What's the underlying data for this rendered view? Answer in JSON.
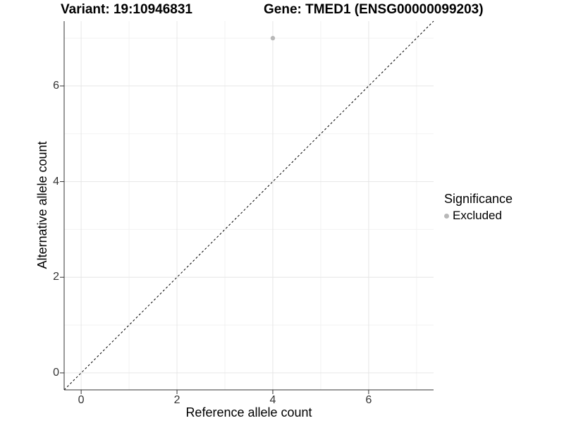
{
  "chart_data": {
    "type": "scatter",
    "titles": {
      "left": "Variant: 19:10946831",
      "right": "Gene: TMED1 (ENSG00000099203)"
    },
    "xlabel": "Reference allele count",
    "ylabel": "Alternative allele count",
    "xlim": [
      -0.355,
      7.355
    ],
    "ylim": [
      -0.355,
      7.355
    ],
    "x_ticks": [
      0,
      2,
      4,
      6
    ],
    "y_ticks": [
      0,
      2,
      4,
      6
    ],
    "x_minor_gridlines": [
      1,
      3,
      5,
      7
    ],
    "y_minor_gridlines": [
      1,
      3,
      5,
      7
    ],
    "grid": "major-and-minor",
    "legend_position": "right",
    "points": [
      {
        "x": 4,
        "y": 7,
        "significance": "Excluded"
      }
    ],
    "reference_line": {
      "style": "dashed",
      "slope": 1,
      "intercept": 0
    },
    "legend": {
      "title": "Significance",
      "entries": [
        {
          "label": "Excluded",
          "color": "#b8b8b8",
          "marker": "circle"
        }
      ]
    },
    "colors": {
      "point": "#b8b8b8",
      "grid_major": "#e6e6e6",
      "grid_minor": "#f2f2f2",
      "axis": "#333333",
      "reference_line": "#000000",
      "background": "#ffffff"
    }
  }
}
